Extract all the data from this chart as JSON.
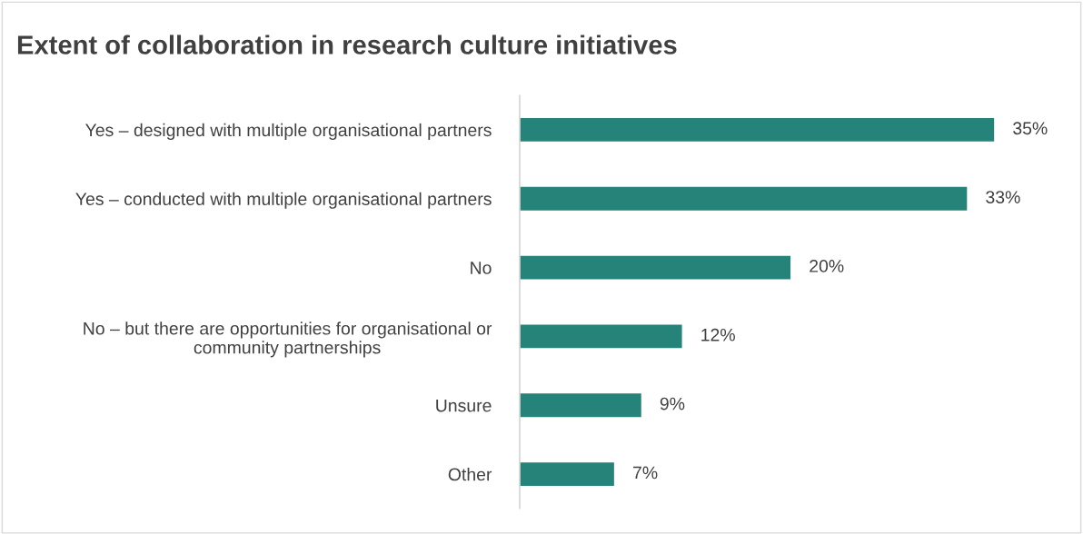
{
  "chart_data": {
    "type": "bar",
    "orientation": "horizontal",
    "title": "Extent of collaboration in research culture initiatives",
    "categories": [
      "Yes – designed with multiple organisational partners",
      "Yes – conducted with multiple organisational partners",
      "No",
      "No – but there are opportunities for organisational or\ncommunity partnerships",
      "Unsure",
      "Other"
    ],
    "values": [
      35,
      33,
      20,
      12,
      9,
      7
    ],
    "value_labels": [
      "35%",
      "33%",
      "20%",
      "12%",
      "9%",
      "7%"
    ],
    "color": "#26837a",
    "grid": false,
    "legend": false
  }
}
